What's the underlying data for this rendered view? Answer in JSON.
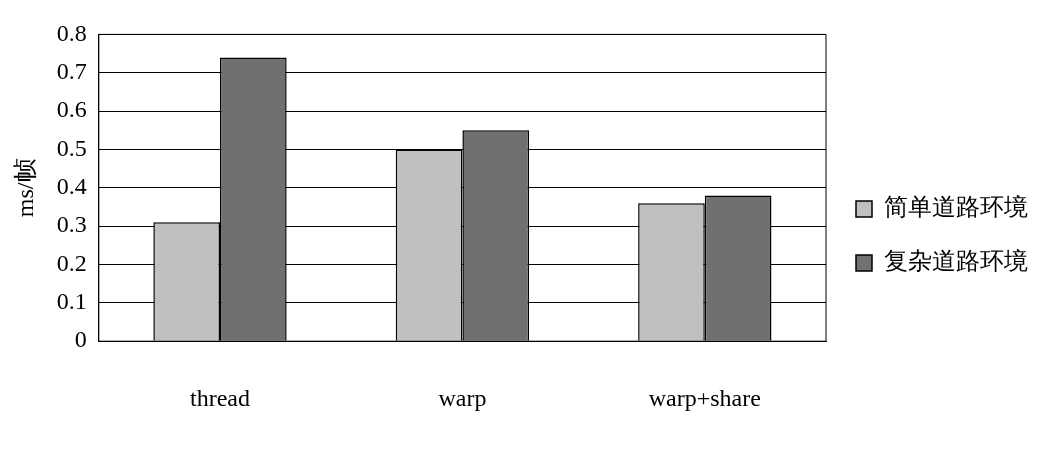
{
  "chart_data": {
    "type": "bar",
    "ylabel": "ms/帧",
    "categories": [
      "thread",
      "warp",
      "warp+share"
    ],
    "series": [
      {
        "name": "简单道路环境",
        "color": "#c0c0c0",
        "values": [
          0.31,
          0.5,
          0.36
        ]
      },
      {
        "name": "复杂道路环境",
        "color": "#707070",
        "values": [
          0.74,
          0.55,
          0.38
        ]
      }
    ],
    "ylim": [
      0,
      0.8
    ],
    "yticks": [
      0,
      0.1,
      0.2,
      0.3,
      0.4,
      0.5,
      0.6,
      0.7,
      0.8
    ],
    "grid": "y",
    "legend": "right"
  }
}
